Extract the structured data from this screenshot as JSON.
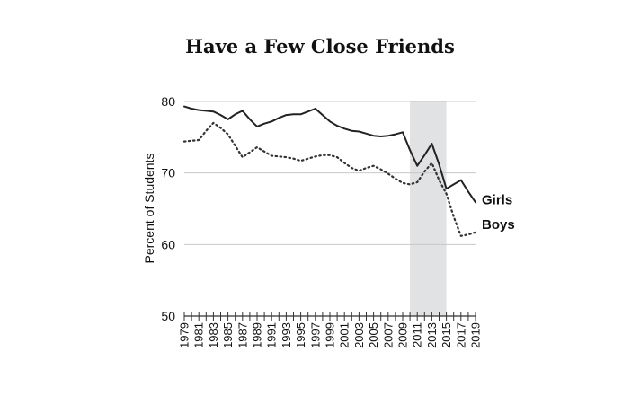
{
  "chart_data": {
    "type": "line",
    "title": "Have a Few Close Friends",
    "xlabel": "",
    "ylabel": "Percent of Students",
    "ylim": [
      50,
      80
    ],
    "yticks": [
      50,
      60,
      70,
      80
    ],
    "x": [
      1979,
      1980,
      1981,
      1982,
      1983,
      1984,
      1985,
      1986,
      1987,
      1988,
      1989,
      1990,
      1991,
      1992,
      1993,
      1994,
      1995,
      1996,
      1997,
      1998,
      1999,
      2000,
      2001,
      2002,
      2003,
      2004,
      2005,
      2006,
      2007,
      2008,
      2009,
      2010,
      2011,
      2012,
      2013,
      2014,
      2015,
      2016,
      2017,
      2018,
      2019
    ],
    "xtick_labels": [
      "1979",
      "1981",
      "1983",
      "1985",
      "1987",
      "1989",
      "1991",
      "1993",
      "1995",
      "1997",
      "1999",
      "2001",
      "2003",
      "2005",
      "2007",
      "2009",
      "2011",
      "2013",
      "2015",
      "2017",
      "2019"
    ],
    "shaded_region": [
      2010,
      2015
    ],
    "grid": "horizontal",
    "series": [
      {
        "name": "Girls",
        "style": "solid",
        "color": "#222222",
        "values": [
          79.3,
          79.0,
          78.8,
          78.7,
          78.6,
          78.1,
          77.5,
          78.2,
          78.7,
          77.5,
          76.5,
          76.9,
          77.2,
          77.7,
          78.1,
          78.2,
          78.2,
          78.6,
          79.0,
          78.1,
          77.2,
          76.6,
          76.2,
          75.9,
          75.8,
          75.5,
          75.2,
          75.1,
          75.2,
          75.4,
          75.7,
          73.2,
          71.0,
          72.5,
          74.1,
          71.2,
          67.8,
          68.4,
          69.0,
          67.4,
          65.9
        ]
      },
      {
        "name": "Boys",
        "style": "dotted",
        "color": "#333333",
        "values": [
          74.4,
          74.5,
          74.6,
          75.9,
          77.0,
          76.3,
          75.4,
          73.8,
          72.2,
          72.9,
          73.6,
          73.0,
          72.4,
          72.3,
          72.2,
          72.0,
          71.7,
          72.0,
          72.3,
          72.5,
          72.5,
          72.2,
          71.4,
          70.7,
          70.3,
          70.7,
          71.0,
          70.5,
          69.9,
          69.2,
          68.6,
          68.4,
          68.7,
          70.2,
          71.4,
          69.0,
          67.1,
          63.9,
          61.2,
          61.4,
          61.7
        ]
      }
    ]
  }
}
